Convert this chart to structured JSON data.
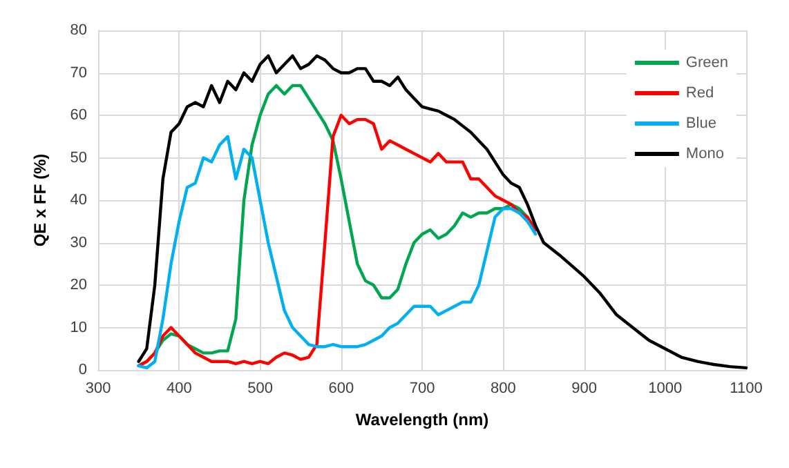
{
  "chart_data": {
    "type": "line",
    "xlabel": "Wavelength (nm)",
    "ylabel": "QE x FF (%)",
    "x": [
      350,
      360,
      370,
      380,
      390,
      400,
      410,
      420,
      430,
      440,
      450,
      460,
      470,
      480,
      490,
      500,
      510,
      520,
      530,
      540,
      550,
      560,
      570,
      580,
      590,
      600,
      610,
      620,
      630,
      640,
      650,
      660,
      670,
      680,
      690,
      700,
      710,
      720,
      730,
      740,
      750,
      760,
      770,
      780,
      790,
      800,
      810,
      820,
      830,
      840,
      850,
      870,
      900,
      920,
      940,
      960,
      980,
      1000,
      1020,
      1040,
      1060,
      1080,
      1100
    ],
    "series": [
      {
        "name": "Green",
        "color": "#00a650",
        "values": [
          1,
          2,
          4,
          7,
          8.5,
          8,
          6,
          5,
          4,
          4,
          4.5,
          4.5,
          12,
          40,
          53,
          60,
          65,
          67,
          65,
          67,
          67,
          64,
          61,
          58,
          54,
          45,
          35,
          25,
          21,
          20,
          17,
          17,
          19,
          25,
          30,
          32,
          33,
          31,
          32,
          34,
          37,
          36,
          37,
          37,
          38,
          38,
          39,
          38,
          36,
          33,
          null,
          null,
          null,
          null,
          null,
          null,
          null,
          null,
          null,
          null,
          null,
          null,
          null
        ]
      },
      {
        "name": "Red",
        "color": "#ff0000",
        "values": [
          1,
          2,
          4,
          8,
          10,
          8,
          6,
          4,
          3,
          2,
          2,
          2,
          1.5,
          2,
          1.5,
          2,
          1.5,
          3,
          4,
          3.5,
          2.5,
          3,
          6,
          30,
          55,
          60,
          58,
          59,
          59,
          58,
          52,
          54,
          53,
          52,
          51,
          50,
          49,
          51,
          49,
          49,
          49,
          45,
          45,
          43,
          41,
          40,
          39,
          37,
          36,
          33,
          null,
          null,
          null,
          null,
          null,
          null,
          null,
          null,
          null,
          null,
          null,
          null,
          null
        ]
      },
      {
        "name": "Blue",
        "color": "#00b0f0",
        "values": [
          1,
          0.5,
          2,
          12,
          25,
          35,
          43,
          44,
          50,
          49,
          53,
          55,
          45,
          52,
          50,
          40,
          30,
          22,
          14,
          10,
          8,
          6,
          5.5,
          5.5,
          6,
          5.5,
          5.5,
          5.5,
          6,
          7,
          8,
          10,
          11,
          13,
          15,
          15,
          15,
          13,
          14,
          15,
          16,
          16,
          20,
          28,
          36,
          38,
          38,
          37,
          35,
          32,
          null,
          null,
          null,
          null,
          null,
          null,
          null,
          null,
          null,
          null,
          null,
          null,
          null
        ]
      },
      {
        "name": "Mono",
        "color": "#000000",
        "values": [
          2,
          5,
          20,
          45,
          56,
          58,
          62,
          63,
          62,
          67,
          63,
          68,
          66,
          70,
          68,
          72,
          74,
          70,
          72,
          74,
          71,
          72,
          74,
          73,
          71,
          70,
          70,
          71,
          71,
          68,
          68,
          67,
          69,
          66,
          64,
          62,
          61.5,
          61,
          60,
          59,
          57.5,
          56,
          54,
          52,
          49,
          46,
          44,
          43,
          39,
          34,
          30,
          27,
          22,
          18,
          13,
          10,
          7,
          5,
          3,
          2,
          1.3,
          0.8,
          0.5
        ]
      }
    ],
    "xlim": [
      300,
      1100
    ],
    "xticks": [
      300,
      400,
      500,
      600,
      700,
      800,
      900,
      1000,
      1100
    ],
    "ylim": [
      0,
      80
    ],
    "yticks": [
      0,
      10,
      20,
      30,
      40,
      50,
      60,
      70,
      80
    ],
    "grid": true,
    "legend": "top right",
    "marker": "none",
    "line_style": "solid"
  }
}
